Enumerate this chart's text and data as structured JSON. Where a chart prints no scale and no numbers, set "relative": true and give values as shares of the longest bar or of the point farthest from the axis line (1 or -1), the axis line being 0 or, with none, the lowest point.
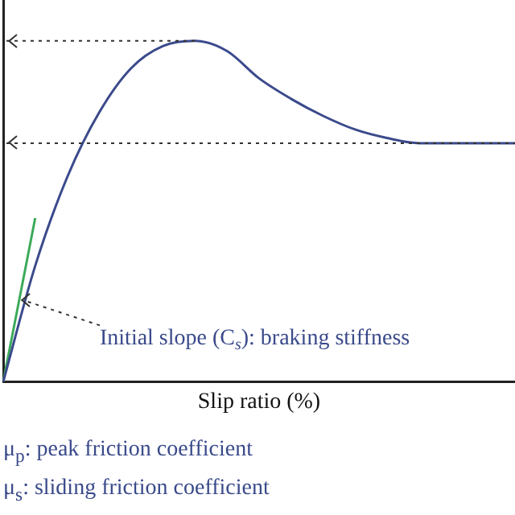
{
  "chart_data": {
    "type": "line",
    "relative": true,
    "xlabel": "Slip ratio (%)",
    "categories": [
      null,
      null,
      null,
      null,
      null,
      null,
      null,
      null,
      null,
      null,
      null,
      null,
      null,
      null,
      null,
      null,
      null
    ],
    "series": [
      {
        "color": "#3b4a8c",
        "values": [
          0,
          0.34,
          0.6,
          0.79,
          0.92,
          0.985,
          1,
          0.97,
          0.89,
          0.83,
          0.78,
          0.74,
          0.715,
          0.7,
          0.7,
          0.7,
          0.7
        ]
      },
      {
        "color": "#3daa5a",
        "values": [
          0,
          0.48,
          null,
          null,
          null,
          null,
          null,
          null,
          null,
          null,
          null,
          null,
          null,
          null,
          null,
          null,
          null
        ]
      }
    ],
    "ref_lines": [
      {
        "axis": "y",
        "value": 1,
        "line_style": "dotted",
        "color": "#333333"
      },
      {
        "axis": "y",
        "value": 0.7,
        "line_style": "dotted",
        "color": "#333333"
      }
    ],
    "annotations": [
      "Initial slope (C$_{s}$): braking stiffness",
      "μ$_{p}$: peak friction coefficient",
      "μ$_{s}$: sliding friction coefficient"
    ],
    "grid": false,
    "legend": false,
    "marker": "none",
    "line_style": "solid"
  }
}
